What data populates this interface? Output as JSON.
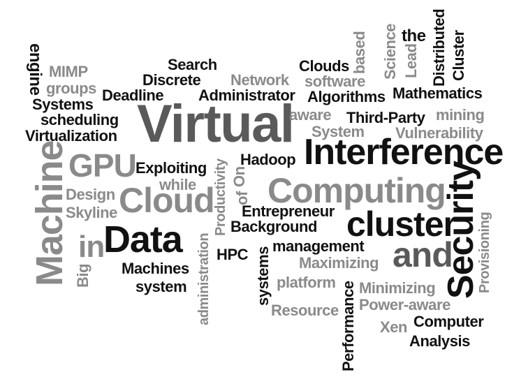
{
  "words": {
    "virtual": "Virtual",
    "interference": "Interference",
    "computing": "Computing",
    "cluster_lower": "cluster",
    "data": "Data",
    "gpu": "GPU",
    "cloud": "Cloud",
    "machine": "Machine",
    "security": "Security",
    "and": "and",
    "in": "in",
    "engine": "engine",
    "mimp": "MIMP",
    "groups": "groups",
    "systems_cap": "Systems",
    "scheduling": "scheduling",
    "virtualization": "Virtualization",
    "deadline": "Deadline",
    "discrete": "Discrete",
    "search": "Search",
    "network": "Network",
    "administrator": "Administrator",
    "clouds": "Clouds",
    "software": "software",
    "algorithms": "Algorithms",
    "based": "based",
    "science": "Science",
    "lead": "Lead",
    "the": "the",
    "distributed": "Distributed",
    "cluster_cap": "Cluster",
    "mathematics": "Mathematics",
    "aware": "aware",
    "third_party": "Third-Party",
    "mining": "mining",
    "system_cap": "System",
    "vulnerability": "Vulnerability",
    "exploiting": "Exploiting",
    "productivity": "Productivity",
    "hadoop": "Hadoop",
    "on": "On",
    "of": "of",
    "while": "while",
    "design": "Design",
    "skyline": "Skyline",
    "entrepreneur": "Entrepreneur",
    "background": "Background",
    "administration": "administration",
    "provisioning": "Provisioning",
    "big": "Big",
    "management": "management",
    "hpc": "HPC",
    "machines": "Machines",
    "systems_lower": "systems",
    "maximizing": "Maximizing",
    "system_lower": "system",
    "platform": "platform",
    "minimizing": "Minimizing",
    "resource": "Resource",
    "performance": "Performance",
    "power_aware": "Power-aware",
    "xen": "Xen",
    "computer": "Computer",
    "analysis": "Analysis"
  },
  "colors": {
    "black": "#111111",
    "gray": "#8a8a8a",
    "dark_gray": "#5a5a5a",
    "background": "#ffffff"
  }
}
